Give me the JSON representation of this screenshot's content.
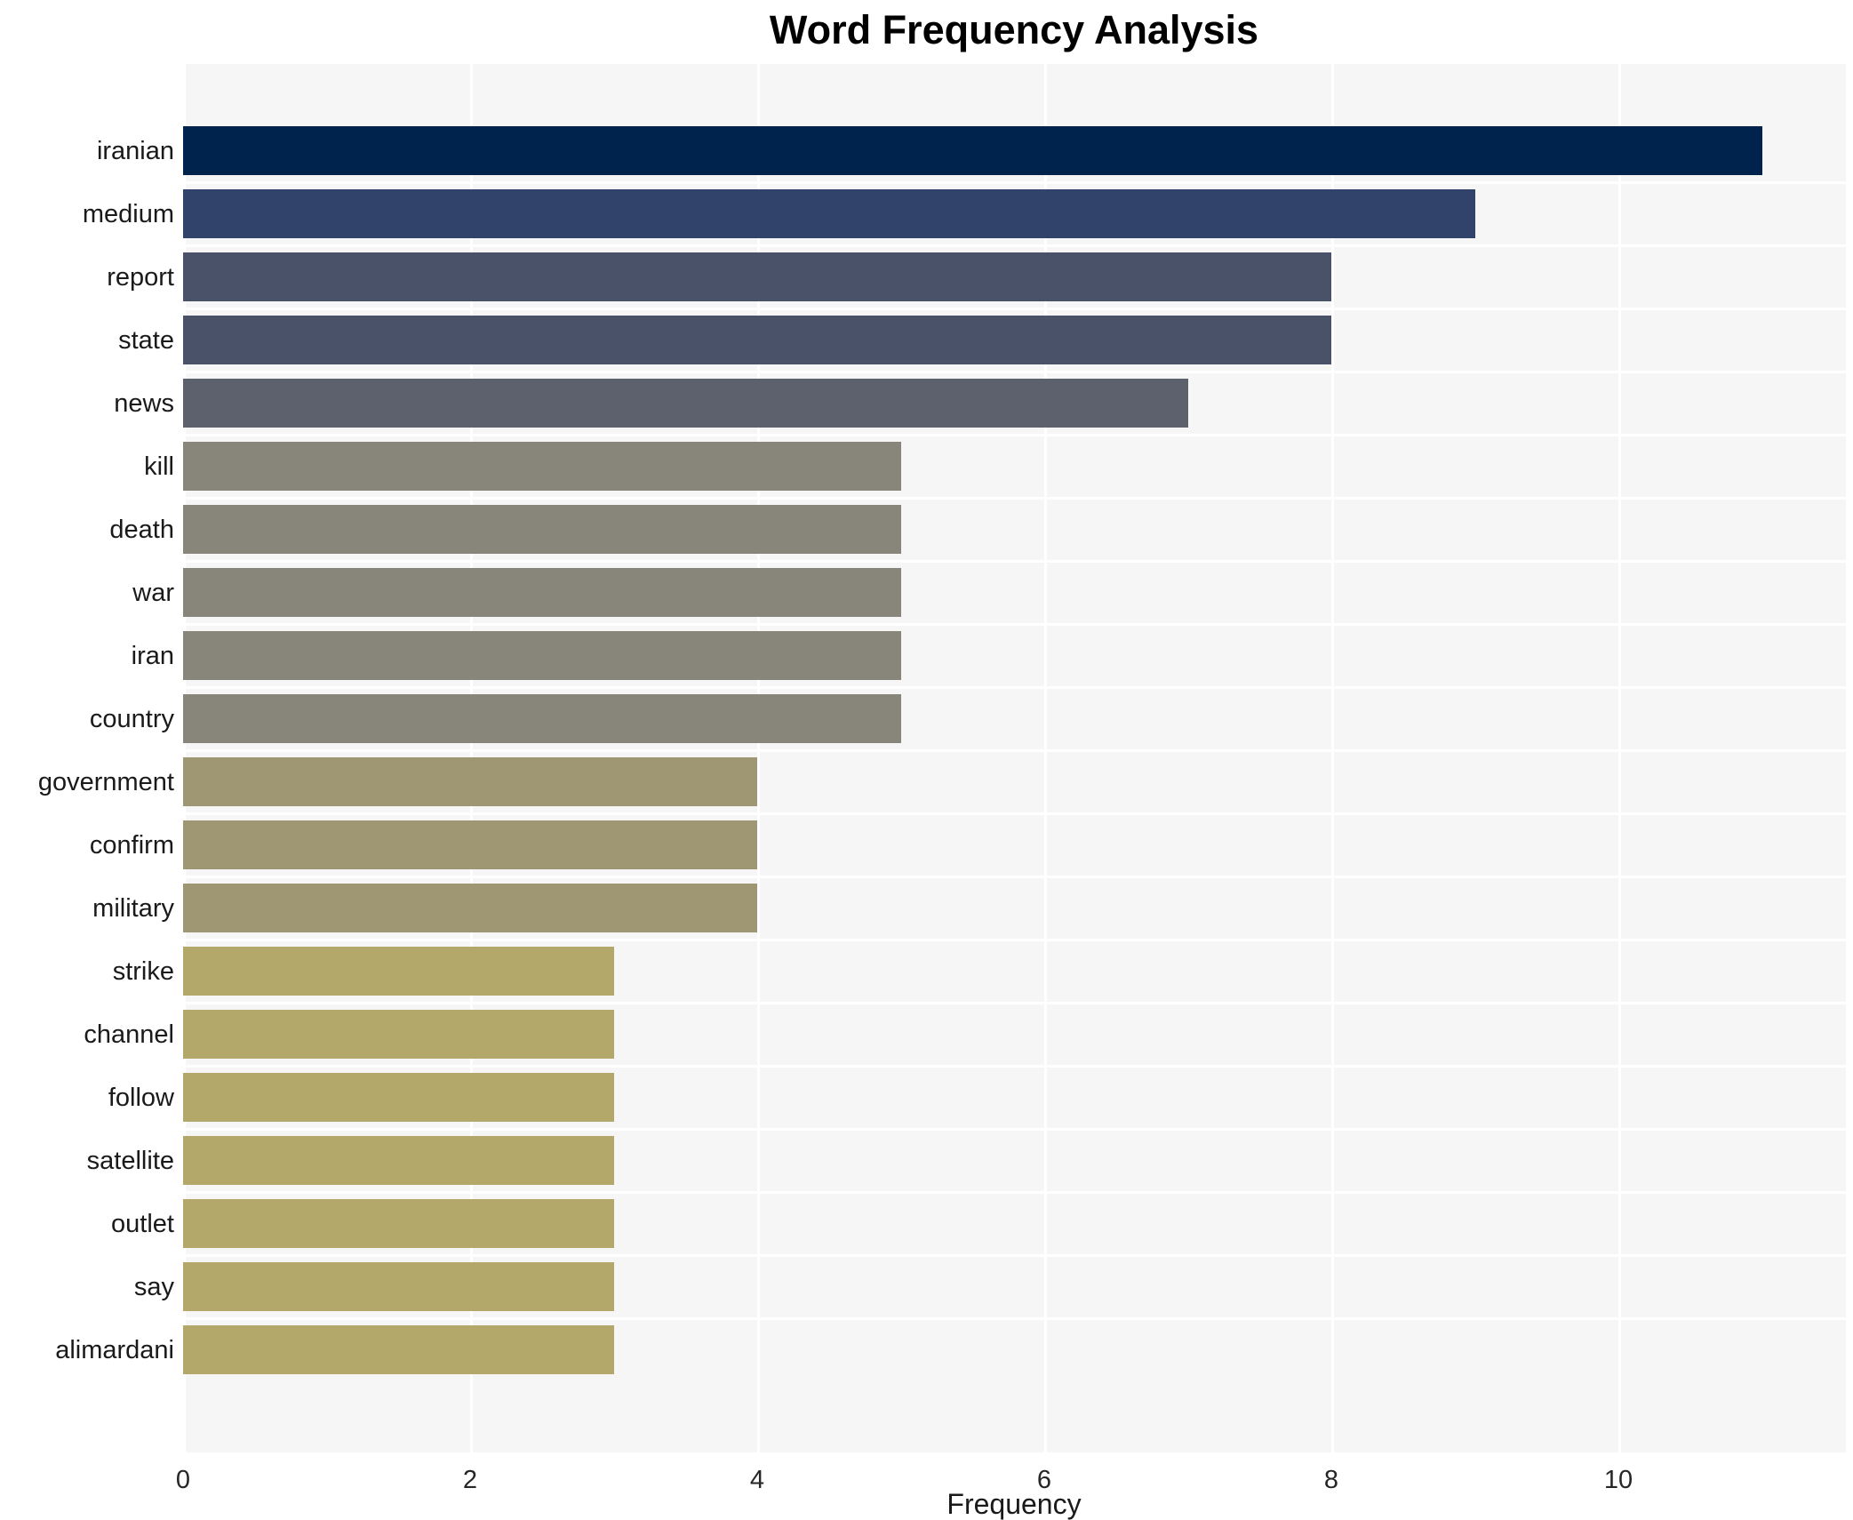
{
  "chart_data": {
    "type": "bar",
    "orientation": "horizontal",
    "title": "Word Frequency Analysis",
    "xlabel": "Frequency",
    "ylabel": "",
    "categories": [
      "iranian",
      "medium",
      "report",
      "state",
      "news",
      "kill",
      "death",
      "war",
      "iran",
      "country",
      "government",
      "confirm",
      "military",
      "strike",
      "channel",
      "follow",
      "satellite",
      "outlet",
      "say",
      "alimardani"
    ],
    "values": [
      11,
      9,
      8,
      8,
      7,
      5,
      5,
      5,
      5,
      5,
      4,
      4,
      4,
      3,
      3,
      3,
      3,
      3,
      3,
      3
    ],
    "bar_colors": [
      "#00234e",
      "#31436b",
      "#4a5269",
      "#4a5269",
      "#5d616d",
      "#88867a",
      "#88867a",
      "#88867a",
      "#88867a",
      "#88867a",
      "#9f9773",
      "#9f9773",
      "#9f9773",
      "#b3a86a",
      "#b3a86a",
      "#b3a86a",
      "#b3a86a",
      "#b3a86a",
      "#b3a86a",
      "#b3a86a"
    ],
    "xticks": [
      0,
      2,
      4,
      6,
      8,
      10
    ],
    "xlim": [
      0,
      11.6
    ],
    "grid": true,
    "legend": false,
    "colors": {
      "figure_bg": "#ffffff",
      "plot_bg": "#f6f6f7",
      "gridline": "#ffffff",
      "text": "#1a1a1a"
    }
  }
}
